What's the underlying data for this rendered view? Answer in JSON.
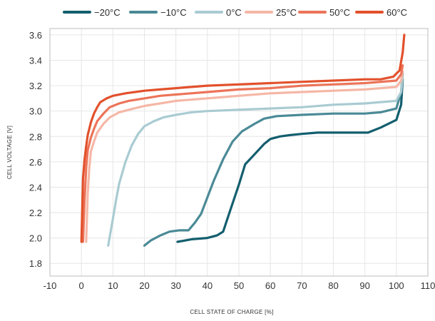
{
  "chart_data": {
    "type": "line",
    "xlabel": "CELL STATE OF CHARGE [%]",
    "ylabel": "CELL VOLTAGE [V]",
    "xlim": [
      -10,
      110
    ],
    "ylim": [
      1.7,
      3.65
    ],
    "xticks": [
      -10,
      0,
      10,
      20,
      30,
      40,
      50,
      60,
      70,
      80,
      90,
      100,
      110
    ],
    "yticks": [
      1.8,
      2.0,
      2.2,
      2.4,
      2.6,
      2.8,
      3.0,
      3.2,
      3.4,
      3.6
    ],
    "xtick_labels": [
      "-10",
      "0",
      "10",
      "20",
      "30",
      "40",
      "50",
      "60",
      "70",
      "80",
      "90",
      "100",
      "110"
    ],
    "ytick_labels": [
      "1.8",
      "2.0",
      "2.2",
      "2.4",
      "2.6",
      "2.8",
      "3.0",
      "3.2",
      "3.4",
      "3.6"
    ],
    "grid": true,
    "legend_position": "top",
    "series": [
      {
        "name": "−20°C",
        "color": "#135e6e",
        "x": [
          30.5,
          35,
          40,
          43,
          45,
          47,
          50,
          52,
          55,
          58,
          60,
          63,
          66,
          70,
          75,
          80,
          85,
          91,
          95,
          100,
          101.5,
          102
        ],
        "y": [
          1.97,
          1.99,
          2.0,
          2.02,
          2.05,
          2.2,
          2.42,
          2.58,
          2.66,
          2.74,
          2.78,
          2.8,
          2.81,
          2.82,
          2.83,
          2.83,
          2.83,
          2.83,
          2.87,
          2.93,
          3.05,
          3.25
        ]
      },
      {
        "name": "−10°C",
        "color": "#4a8a96",
        "x": [
          20,
          22,
          25,
          28,
          31,
          34,
          36,
          38,
          40,
          42,
          45,
          48,
          51,
          55,
          58,
          62,
          70,
          80,
          90,
          95,
          100,
          101.5,
          102
        ],
        "y": [
          1.94,
          1.98,
          2.02,
          2.05,
          2.06,
          2.06,
          2.12,
          2.19,
          2.32,
          2.45,
          2.62,
          2.76,
          2.84,
          2.9,
          2.94,
          2.96,
          2.97,
          2.98,
          2.98,
          2.99,
          3.02,
          3.15,
          3.3
        ]
      },
      {
        "name": "0°C",
        "color": "#a9cbd2",
        "x": [
          8.5,
          9,
          10,
          11,
          12,
          14,
          16,
          18,
          20,
          23,
          26,
          30,
          35,
          40,
          50,
          60,
          70,
          80,
          90,
          100,
          101.5,
          102
        ],
        "y": [
          1.94,
          2.01,
          2.15,
          2.3,
          2.43,
          2.6,
          2.73,
          2.82,
          2.88,
          2.92,
          2.95,
          2.97,
          2.99,
          3.0,
          3.01,
          3.02,
          3.03,
          3.05,
          3.06,
          3.08,
          3.15,
          3.27
        ]
      },
      {
        "name": "25°C",
        "color": "#f5b7a6",
        "x": [
          1.5,
          2,
          2.5,
          3,
          4,
          5,
          7,
          9,
          12,
          15,
          20,
          25,
          30,
          40,
          50,
          60,
          70,
          80,
          90,
          100,
          101.5,
          102
        ],
        "y": [
          1.97,
          2.35,
          2.55,
          2.68,
          2.76,
          2.83,
          2.9,
          2.95,
          2.99,
          3.01,
          3.04,
          3.06,
          3.08,
          3.1,
          3.12,
          3.14,
          3.15,
          3.16,
          3.17,
          3.19,
          3.24,
          3.31
        ]
      },
      {
        "name": "50°C",
        "color": "#ec7459",
        "x": [
          0.5,
          1,
          1.5,
          2,
          3,
          4,
          5,
          7,
          9,
          12,
          15,
          20,
          25,
          30,
          40,
          50,
          60,
          70,
          80,
          90,
          100,
          101.5,
          102
        ],
        "y": [
          1.97,
          2.3,
          2.55,
          2.69,
          2.79,
          2.86,
          2.92,
          2.98,
          3.03,
          3.06,
          3.08,
          3.1,
          3.12,
          3.13,
          3.15,
          3.17,
          3.18,
          3.2,
          3.21,
          3.22,
          3.24,
          3.29,
          3.36
        ]
      },
      {
        "name": "60°C",
        "color": "#e2512c",
        "x": [
          0,
          0.5,
          1,
          1.5,
          2,
          3,
          4,
          5,
          6,
          8,
          10,
          14,
          20,
          25,
          30,
          40,
          50,
          60,
          70,
          80,
          90,
          95,
          99,
          101,
          102,
          102.5
        ],
        "y": [
          1.97,
          2.47,
          2.62,
          2.72,
          2.81,
          2.91,
          2.98,
          3.03,
          3.07,
          3.1,
          3.12,
          3.14,
          3.16,
          3.17,
          3.18,
          3.2,
          3.21,
          3.22,
          3.23,
          3.24,
          3.25,
          3.25,
          3.27,
          3.32,
          3.46,
          3.6
        ]
      }
    ]
  }
}
